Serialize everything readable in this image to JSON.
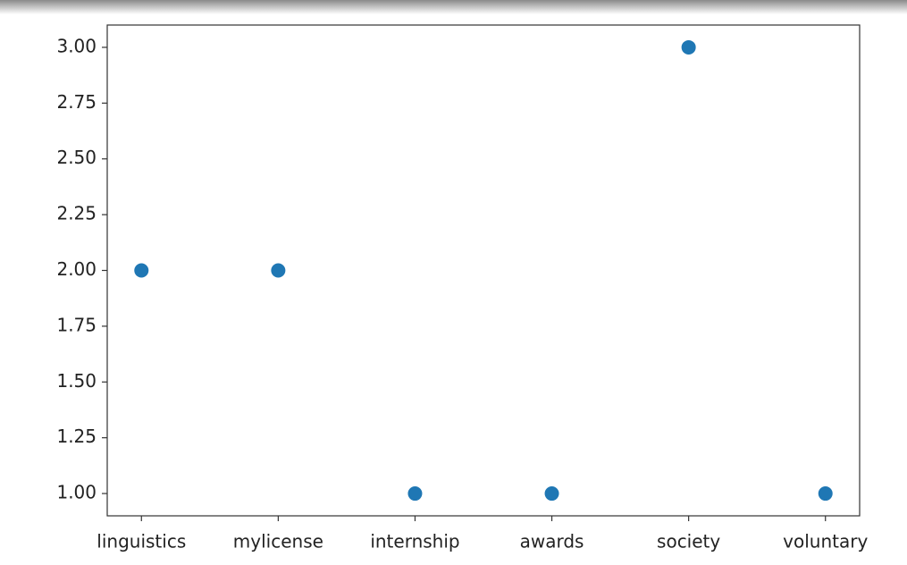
{
  "chart_data": {
    "type": "scatter",
    "categories": [
      "linguistics",
      "mylicense",
      "internship",
      "awards",
      "society",
      "voluntary"
    ],
    "values": [
      2,
      2,
      1,
      1,
      3,
      1
    ],
    "color": "#1f77b4",
    "ylim": [
      0.9,
      3.1
    ],
    "yticks": [
      {
        "value": 1,
        "label": "1.00"
      },
      {
        "value": 1.25,
        "label": "1.25"
      },
      {
        "value": 1.5,
        "label": "1.50"
      },
      {
        "value": 1.75,
        "label": "1.75"
      },
      {
        "value": 2,
        "label": "2.00"
      },
      {
        "value": 2.25,
        "label": "2.25"
      },
      {
        "value": 2.5,
        "label": "2.50"
      },
      {
        "value": 2.75,
        "label": "2.75"
      },
      {
        "value": 3,
        "label": "3.00"
      }
    ],
    "grid": false
  }
}
